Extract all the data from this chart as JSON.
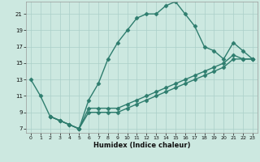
{
  "xlabel": "Humidex (Indice chaleur)",
  "line_color": "#2e7d6e",
  "bg_color": "#cce8e0",
  "grid_color": "#aacfc8",
  "xlim": [
    -0.5,
    23.5
  ],
  "ylim": [
    6.5,
    22.5
  ],
  "xticks": [
    0,
    1,
    2,
    3,
    4,
    5,
    6,
    7,
    8,
    9,
    10,
    11,
    12,
    13,
    14,
    15,
    16,
    17,
    18,
    19,
    20,
    21,
    22,
    23
  ],
  "yticks": [
    7,
    9,
    11,
    13,
    15,
    17,
    19,
    21
  ],
  "line1_x": [
    0,
    1,
    2,
    3,
    4,
    5,
    6,
    7,
    8,
    9,
    10,
    11,
    12,
    13,
    14,
    15,
    16,
    17,
    18,
    19,
    20,
    21,
    22,
    23
  ],
  "line1_y": [
    13,
    11,
    8.5,
    8.0,
    7.5,
    7.0,
    10.5,
    12.5,
    15.5,
    17.5,
    19.0,
    20.5,
    21.0,
    21.0,
    22.0,
    22.5,
    21.0,
    19.5,
    17.0,
    16.5,
    15.5,
    17.5,
    16.5,
    15.5
  ],
  "line2_x": [
    2,
    3,
    4,
    5,
    6,
    7,
    8,
    9,
    10,
    11,
    12,
    13,
    14,
    15,
    16,
    17,
    18,
    19,
    20,
    21,
    22,
    23
  ],
  "line2_y": [
    8.5,
    8.0,
    7.5,
    7.0,
    9.5,
    9.5,
    9.5,
    9.5,
    10.0,
    10.5,
    11.0,
    11.5,
    12.0,
    12.5,
    13.0,
    13.5,
    14.0,
    14.5,
    15.0,
    16.0,
    15.5,
    15.5
  ],
  "line3_x": [
    2,
    3,
    4,
    5,
    6,
    7,
    8,
    9,
    10,
    11,
    12,
    13,
    14,
    15,
    16,
    17,
    18,
    19,
    20,
    21,
    22,
    23
  ],
  "line3_y": [
    8.5,
    8.0,
    7.5,
    7.0,
    9.0,
    9.0,
    9.0,
    9.0,
    9.5,
    10.0,
    10.5,
    11.0,
    11.5,
    12.0,
    12.5,
    13.0,
    13.5,
    14.0,
    14.5,
    15.5,
    15.5,
    15.5
  ],
  "marker": "D",
  "marker_size": 2.5,
  "linewidth": 1.0
}
